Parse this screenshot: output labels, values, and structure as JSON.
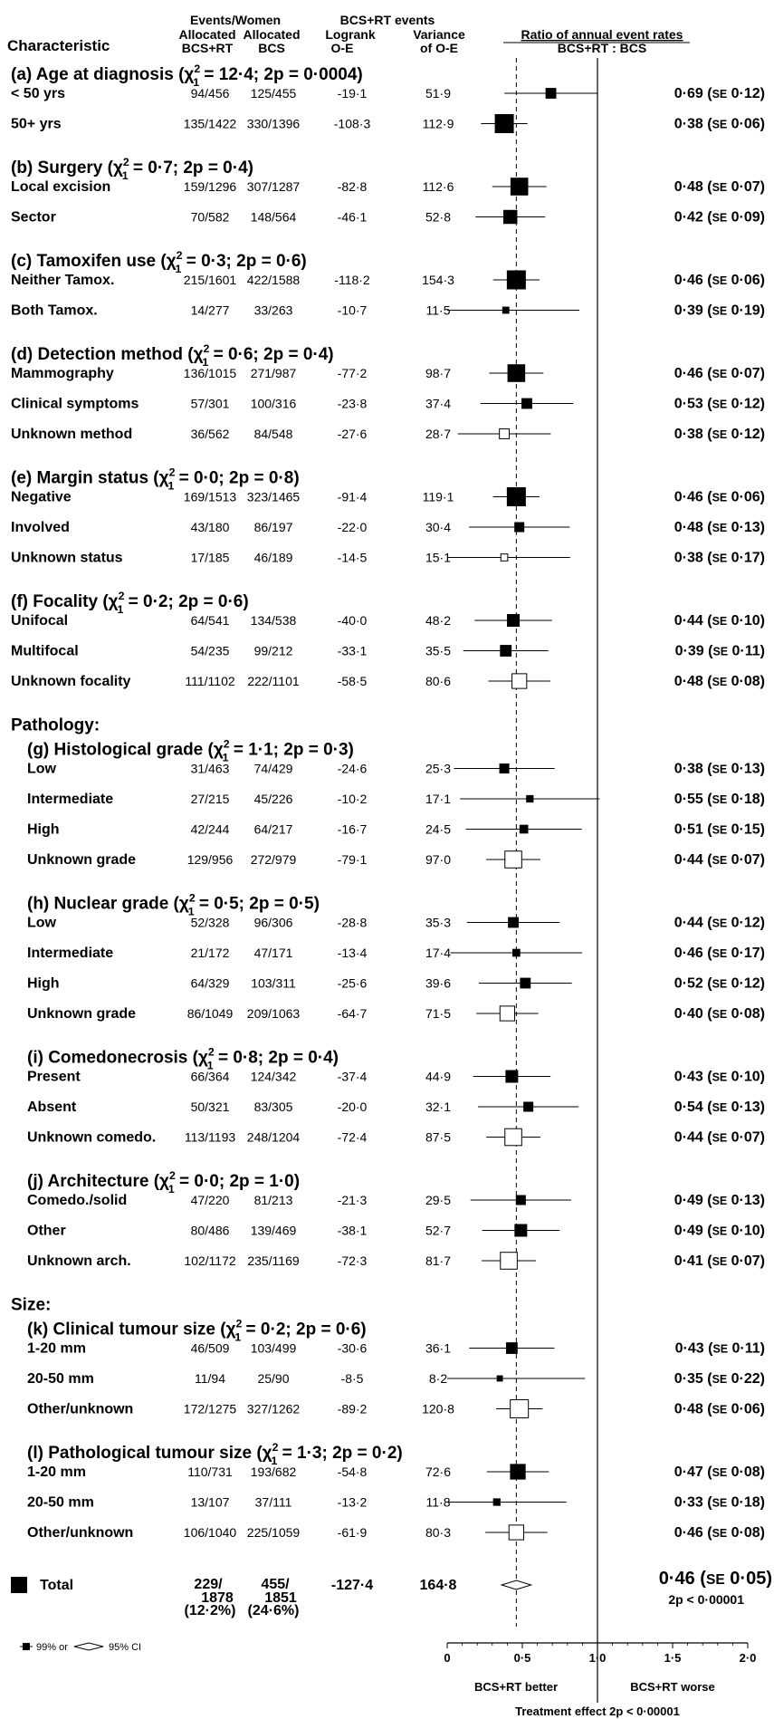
{
  "header": {
    "characteristic": "Characteristic",
    "events_women": "Events/Women",
    "col_rt_line1": "Allocated",
    "col_rt_line2": "BCS+RT",
    "col_bcs_line1": "Allocated",
    "col_bcs_line2": "BCS",
    "rt_events": "BCS+RT events",
    "col_oe_line1": "Logrank",
    "col_oe_line2": "O-E",
    "col_var_line1": "Variance",
    "col_var_line2": "of O-E",
    "ratio_title": "Ratio of annual event rates",
    "ratio_sub": "BCS+RT : BCS"
  },
  "chart_data": {
    "type": "forest",
    "x_ticks": [
      "0",
      "0·5",
      "1·0",
      "1·5",
      "2·0"
    ],
    "xlim": [
      0,
      2
    ],
    "null_value": 1.0,
    "reference_line": 0.46,
    "x_left_label": "BCS+RT better",
    "x_right_label": "BCS+RT worse",
    "x_footer": "Treatment effect 2p < 0·00001",
    "legend_text": "99% or",
    "legend_ci_text": "95% CI",
    "groups": [
      {
        "title": "(a) Age at diagnosis (χ",
        "chi": "2",
        "chi_sub": "1",
        "stats": " = 12·4; 2p = 0·0004)",
        "rows": [
          {
            "label": "< 50 yrs",
            "rt": "94/456",
            "bcs": "125/455",
            "oe": "-19·1",
            "var": "51·9",
            "ratio": 0.69,
            "se": 0.12,
            "text": "0·69 (SE 0·12)",
            "open": false
          },
          {
            "label": "50+ yrs",
            "rt": "135/1422",
            "bcs": "330/1396",
            "oe": "-108·3",
            "var": "112·9",
            "ratio": 0.38,
            "se": 0.06,
            "text": "0·38 (SE 0·06)",
            "open": false
          }
        ]
      },
      {
        "title": "(b) Surgery (χ",
        "chi": "2",
        "chi_sub": "1",
        "stats": " = 0·7; 2p = 0·4)",
        "rows": [
          {
            "label": "Local excision",
            "rt": "159/1296",
            "bcs": "307/1287",
            "oe": "-82·8",
            "var": "112·6",
            "ratio": 0.48,
            "se": 0.07,
            "text": "0·48 (SE 0·07)",
            "open": false
          },
          {
            "label": "Sector",
            "rt": "70/582",
            "bcs": "148/564",
            "oe": "-46·1",
            "var": "52·8",
            "ratio": 0.42,
            "se": 0.09,
            "text": "0·42 (SE 0·09)",
            "open": false
          }
        ]
      },
      {
        "title": "(c) Tamoxifen use (χ",
        "chi": "2",
        "chi_sub": "1",
        "stats": " = 0·3; 2p = 0·6)",
        "rows": [
          {
            "label": "Neither Tamox.",
            "rt": "215/1601",
            "bcs": "422/1588",
            "oe": "-118·2",
            "var": "154·3",
            "ratio": 0.46,
            "se": 0.06,
            "text": "0·46 (SE 0·06)",
            "open": false
          },
          {
            "label": "Both Tamox.",
            "rt": "14/277",
            "bcs": "33/263",
            "oe": "-10·7",
            "var": "11·5",
            "ratio": 0.39,
            "se": 0.19,
            "text": "0·39 (SE 0·19)",
            "open": false
          }
        ]
      },
      {
        "title": "(d) Detection method (χ",
        "chi": "2",
        "chi_sub": "1",
        "stats": " = 0·6; 2p = 0·4)",
        "rows": [
          {
            "label": "Mammography",
            "rt": "136/1015",
            "bcs": "271/987",
            "oe": "-77·2",
            "var": "98·7",
            "ratio": 0.46,
            "se": 0.07,
            "text": "0·46 (SE 0·07)",
            "open": false
          },
          {
            "label": "Clinical symptoms",
            "rt": "57/301",
            "bcs": "100/316",
            "oe": "-23·8",
            "var": "37·4",
            "ratio": 0.53,
            "se": 0.12,
            "text": "0·53 (SE 0·12)",
            "open": false
          },
          {
            "label": "Unknown method",
            "rt": "36/562",
            "bcs": "84/548",
            "oe": "-27·6",
            "var": "28·7",
            "ratio": 0.38,
            "se": 0.12,
            "text": "0·38 (SE 0·12)",
            "open": true
          }
        ]
      },
      {
        "title": "(e) Margin status (χ",
        "chi": "2",
        "chi_sub": "1",
        "stats": " = 0·0; 2p = 0·8)",
        "rows": [
          {
            "label": "Negative",
            "rt": "169/1513",
            "bcs": "323/1465",
            "oe": "-91·4",
            "var": "119·1",
            "ratio": 0.46,
            "se": 0.06,
            "text": "0·46 (SE 0·06)",
            "open": false
          },
          {
            "label": "Involved",
            "rt": "43/180",
            "bcs": "86/197",
            "oe": "-22·0",
            "var": "30·4",
            "ratio": 0.48,
            "se": 0.13,
            "text": "0·48 (SE 0·13)",
            "open": false
          },
          {
            "label": "Unknown status",
            "rt": "17/185",
            "bcs": "46/189",
            "oe": "-14·5",
            "var": "15·1",
            "ratio": 0.38,
            "se": 0.17,
            "text": "0·38 (SE 0·17)",
            "open": true
          }
        ]
      },
      {
        "title": "(f) Focality (χ",
        "chi": "2",
        "chi_sub": "1",
        "stats": " = 0·2; 2p = 0·6)",
        "rows": [
          {
            "label": "Unifocal",
            "rt": "64/541",
            "bcs": "134/538",
            "oe": "-40·0",
            "var": "48·2",
            "ratio": 0.44,
            "se": 0.1,
            "text": "0·44 (SE 0·10)",
            "open": false
          },
          {
            "label": "Multifocal",
            "rt": "54/235",
            "bcs": "99/212",
            "oe": "-33·1",
            "var": "35·5",
            "ratio": 0.39,
            "se": 0.11,
            "text": "0·39 (SE 0·11)",
            "open": false
          },
          {
            "label": "Unknown focality",
            "rt": "111/1102",
            "bcs": "222/1101",
            "oe": "-58·5",
            "var": "80·6",
            "ratio": 0.48,
            "se": 0.08,
            "text": "0·48 (SE 0·08)",
            "open": true
          }
        ]
      },
      {
        "section": "Pathology:",
        "title": "(g)  Histological grade (χ",
        "chi": "2",
        "chi_sub": "1",
        "stats": " = 1·1; 2p = 0·3)",
        "rows": [
          {
            "label": "Low",
            "rt": "31/463",
            "bcs": "74/429",
            "oe": "-24·6",
            "var": "25·3",
            "ratio": 0.38,
            "se": 0.13,
            "text": "0·38 (SE 0·13)",
            "open": false
          },
          {
            "label": "Intermediate",
            "rt": "27/215",
            "bcs": "45/226",
            "oe": "-10·2",
            "var": "17·1",
            "ratio": 0.55,
            "se": 0.18,
            "text": "0·55 (SE 0·18)",
            "open": false
          },
          {
            "label": "High",
            "rt": "42/244",
            "bcs": "64/217",
            "oe": "-16·7",
            "var": "24·5",
            "ratio": 0.51,
            "se": 0.15,
            "text": "0·51 (SE 0·15)",
            "open": false
          },
          {
            "label": "Unknown grade",
            "rt": "129/956",
            "bcs": "272/979",
            "oe": "-79·1",
            "var": "97·0",
            "ratio": 0.44,
            "se": 0.07,
            "text": "0·44 (SE 0·07)",
            "open": true
          }
        ]
      },
      {
        "title": "(h) Nuclear grade (χ",
        "chi": "2",
        "chi_sub": "1",
        "stats": " = 0·5; 2p = 0·5)",
        "rows": [
          {
            "label": "Low",
            "rt": "52/328",
            "bcs": "96/306",
            "oe": "-28·8",
            "var": "35·3",
            "ratio": 0.44,
            "se": 0.12,
            "text": "0·44 (SE 0·12)",
            "open": false
          },
          {
            "label": "Intermediate",
            "rt": "21/172",
            "bcs": "47/171",
            "oe": "-13·4",
            "var": "17·4",
            "ratio": 0.46,
            "se": 0.17,
            "text": "0·46 (SE 0·17)",
            "open": false
          },
          {
            "label": "High",
            "rt": "64/329",
            "bcs": "103/311",
            "oe": "-25·6",
            "var": "39·6",
            "ratio": 0.52,
            "se": 0.12,
            "text": "0·52 (SE 0·12)",
            "open": false
          },
          {
            "label": "Unknown grade",
            "rt": "86/1049",
            "bcs": "209/1063",
            "oe": "-64·7",
            "var": "71·5",
            "ratio": 0.4,
            "se": 0.08,
            "text": "0·40 (SE 0·08)",
            "open": true
          }
        ]
      },
      {
        "title": "(i) Comedonecrosis (χ",
        "chi": "2",
        "chi_sub": "1",
        "stats": " = 0·8; 2p = 0·4)",
        "rows": [
          {
            "label": "Present",
            "rt": "66/364",
            "bcs": "124/342",
            "oe": "-37·4",
            "var": "44·9",
            "ratio": 0.43,
            "se": 0.1,
            "text": "0·43 (SE 0·10)",
            "open": false
          },
          {
            "label": "Absent",
            "rt": "50/321",
            "bcs": "83/305",
            "oe": "-20·0",
            "var": "32·1",
            "ratio": 0.54,
            "se": 0.13,
            "text": "0·54 (SE 0·13)",
            "open": false
          },
          {
            "label": "Unknown comedo.",
            "rt": "113/1193",
            "bcs": "248/1204",
            "oe": "-72·4",
            "var": "87·5",
            "ratio": 0.44,
            "se": 0.07,
            "text": "0·44 (SE 0·07)",
            "open": true
          }
        ]
      },
      {
        "title": "(j) Architecture (χ",
        "chi": "2",
        "chi_sub": "1",
        "stats": " = 0·0; 2p = 1·0)",
        "rows": [
          {
            "label": "Comedo./solid",
            "rt": "47/220",
            "bcs": "81/213",
            "oe": "-21·3",
            "var": "29·5",
            "ratio": 0.49,
            "se": 0.13,
            "text": "0·49 (SE 0·13)",
            "open": false
          },
          {
            "label": "Other",
            "rt": "80/486",
            "bcs": "139/469",
            "oe": "-38·1",
            "var": "52·7",
            "ratio": 0.49,
            "se": 0.1,
            "text": "0·49 (SE 0·10)",
            "open": false
          },
          {
            "label": "Unknown arch.",
            "rt": "102/1172",
            "bcs": "235/1169",
            "oe": "-72·3",
            "var": "81·7",
            "ratio": 0.41,
            "se": 0.07,
            "text": "0·41 (SE 0·07)",
            "open": true
          }
        ]
      },
      {
        "section": "Size:",
        "title": "(k) Clinical tumour size (χ",
        "chi": "2",
        "chi_sub": "1",
        "stats": " = 0·2; 2p = 0·6)",
        "rows": [
          {
            "label": "1-20 mm",
            "rt": "46/509",
            "bcs": "103/499",
            "oe": "-30·6",
            "var": "36·1",
            "ratio": 0.43,
            "se": 0.11,
            "text": "0·43 (SE 0·11)",
            "open": false
          },
          {
            "label": "20-50 mm",
            "rt": "11/94",
            "bcs": "25/90",
            "oe": "-8·5",
            "var": "8·2",
            "ratio": 0.35,
            "se": 0.22,
            "text": "0·35 (SE 0·22)",
            "open": false
          },
          {
            "label": "Other/unknown",
            "rt": "172/1275",
            "bcs": "327/1262",
            "oe": "-89·2",
            "var": "120·8",
            "ratio": 0.48,
            "se": 0.06,
            "text": "0·48 (SE 0·06)",
            "open": true
          }
        ]
      },
      {
        "title": "(l) Pathological tumour size (χ",
        "chi": "2",
        "chi_sub": "1",
        "stats": " = 1·3; 2p = 0·2)",
        "rows": [
          {
            "label": "1-20 mm",
            "rt": "110/731",
            "bcs": "193/682",
            "oe": "-54·8",
            "var": "72·6",
            "ratio": 0.47,
            "se": 0.08,
            "text": "0·47 (SE 0·08)",
            "open": false
          },
          {
            "label": "20-50 mm",
            "rt": "13/107",
            "bcs": "37/111",
            "oe": "-13·2",
            "var": "11·8",
            "ratio": 0.33,
            "se": 0.18,
            "text": "0·33 (SE 0·18)",
            "open": false
          },
          {
            "label": "Other/unknown",
            "rt": "106/1040",
            "bcs": "225/1059",
            "oe": "-61·9",
            "var": "80·3",
            "ratio": 0.46,
            "se": 0.08,
            "text": "0·46 (SE 0·08)",
            "open": true
          }
        ]
      }
    ],
    "total": {
      "label": "Total",
      "rt_line1": "229/",
      "rt_line2": "1878",
      "rt_pct": "(12·2%)",
      "bcs_line1": "455/",
      "bcs_line2": "1851",
      "bcs_pct": "(24·6%)",
      "oe": "-127·4",
      "var": "164·8",
      "ratio": 0.46,
      "se": 0.05,
      "text": "0·46 (SE 0·05)",
      "p": "2p < 0·00001"
    }
  }
}
